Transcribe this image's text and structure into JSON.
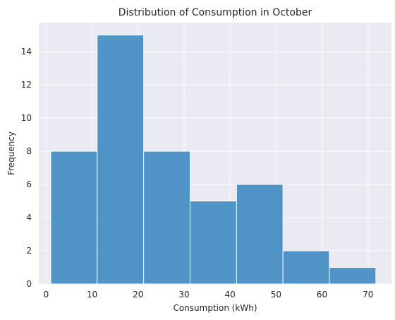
{
  "chart_data": {
    "type": "bar",
    "subtype": "histogram",
    "title": "Distribution of Consumption in October",
    "xlabel": "Consumption (kWh)",
    "ylabel": "Frequency",
    "bin_edges": [
      1.0,
      11.1,
      21.2,
      31.3,
      41.4,
      51.5,
      61.6,
      71.7
    ],
    "values": [
      8,
      15,
      8,
      5,
      6,
      2,
      1
    ],
    "xlim": [
      -1.6,
      75.1
    ],
    "ylim": [
      0,
      15.75
    ],
    "xticks": [
      0,
      10,
      20,
      30,
      40,
      50,
      60,
      70
    ],
    "yticks": [
      0,
      2,
      4,
      6,
      8,
      10,
      12,
      14
    ],
    "grid": true,
    "colors": {
      "bar": "#3a87c0",
      "bar_edge": "#ffffff",
      "plot_background": "#eaeaf2",
      "grid": "#ffffff",
      "text": "#262626"
    }
  }
}
